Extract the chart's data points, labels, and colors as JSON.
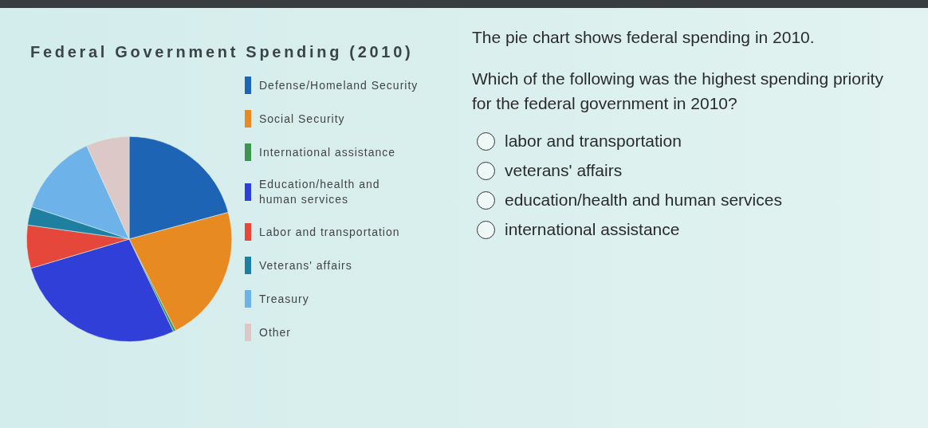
{
  "chart_data": {
    "type": "pie",
    "title": "Federal Government Spending (2010)",
    "categories": [
      "Defense/Homeland Security",
      "Social Security",
      "International assistance",
      "Education/health and human services",
      "Labor and transportation",
      "Veterans' affairs",
      "Treasury",
      "Other"
    ],
    "values": [
      20.8,
      21.7,
      0.4,
      27.5,
      6.8,
      2.9,
      13.1,
      6.8
    ],
    "colors": [
      "#1e64b4",
      "#e88a22",
      "#3c9650",
      "#2f3fd8",
      "#e5473a",
      "#1e7fa0",
      "#6eb2ea",
      "#dcc8c6"
    ],
    "legend": "right",
    "annotations": [
      "The pie chart shows federal spending in 2010.",
      "Which of the following was the highest spending priority for the federal government in 2010?",
      "labor and transportation",
      "veterans' affairs",
      "education/health and human services",
      "international assistance"
    ]
  }
}
